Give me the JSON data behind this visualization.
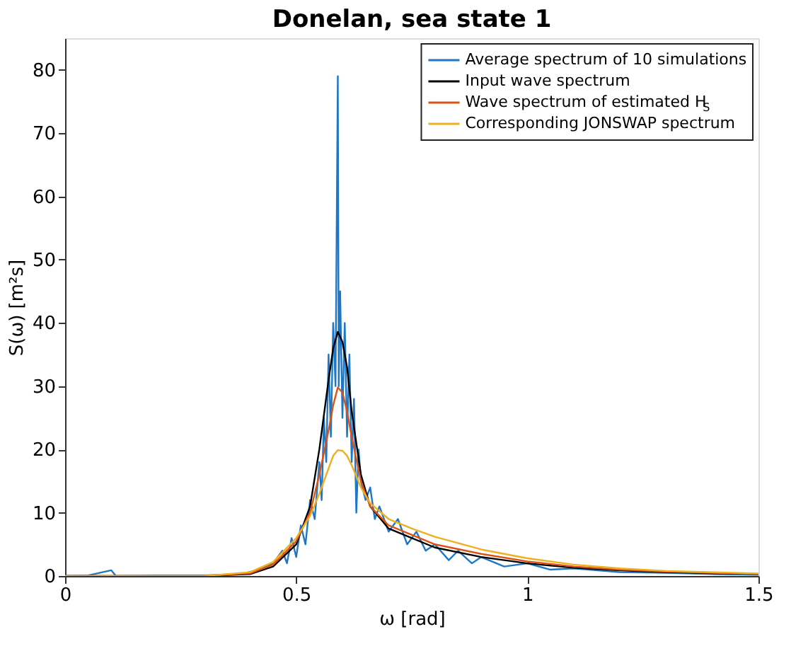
{
  "chart_data": {
    "type": "line",
    "title": "Donelan, sea state 1",
    "xlabel": "ω [rad]",
    "ylabel": "S(ω) [m²s]",
    "xlim": [
      0,
      1.5
    ],
    "xticks": [
      0,
      0.5,
      1,
      1.5
    ],
    "ylim": [
      0,
      85
    ],
    "yticks": [
      0,
      10,
      20,
      30,
      40,
      50,
      60,
      70,
      80
    ],
    "grid": false,
    "legend": "top right",
    "line_style": "solid",
    "marker": "none",
    "series": [
      {
        "name": "Average spectrum of 10 simulations",
        "color": "#1f77c4",
        "x": [
          0,
          0.05,
          0.1,
          0.11,
          0.2,
          0.3,
          0.38,
          0.42,
          0.45,
          0.47,
          0.48,
          0.49,
          0.5,
          0.51,
          0.52,
          0.53,
          0.54,
          0.55,
          0.555,
          0.56,
          0.565,
          0.57,
          0.575,
          0.58,
          0.585,
          0.59,
          0.592,
          0.595,
          0.6,
          0.605,
          0.61,
          0.615,
          0.62,
          0.625,
          0.63,
          0.635,
          0.64,
          0.65,
          0.66,
          0.67,
          0.68,
          0.7,
          0.72,
          0.74,
          0.76,
          0.78,
          0.8,
          0.83,
          0.85,
          0.88,
          0.9,
          0.95,
          1.0,
          1.05,
          1.1,
          1.2,
          1.3,
          1.4,
          1.5
        ],
        "values": [
          0,
          0.1,
          0.9,
          0,
          0.1,
          0.1,
          0.3,
          1,
          2,
          4,
          2,
          6,
          3,
          8,
          5,
          12,
          9,
          18,
          12,
          25,
          18,
          35,
          22,
          40,
          30,
          79,
          30,
          45,
          25,
          40,
          22,
          35,
          18,
          28,
          10,
          20,
          15,
          12,
          14,
          9,
          11,
          7,
          9,
          5,
          7,
          4,
          5,
          2.5,
          4,
          2,
          3,
          1.5,
          2,
          1,
          1.2,
          0.6,
          0.5,
          0.3,
          0.2
        ]
      },
      {
        "name": "Input wave spectrum",
        "color": "#000000",
        "x": [
          0,
          0.3,
          0.4,
          0.45,
          0.5,
          0.53,
          0.55,
          0.57,
          0.58,
          0.59,
          0.6,
          0.61,
          0.62,
          0.64,
          0.66,
          0.7,
          0.75,
          0.8,
          0.9,
          1.0,
          1.1,
          1.2,
          1.3,
          1.5
        ],
        "values": [
          0,
          0,
          0.3,
          1.5,
          5,
          11,
          20,
          31,
          36,
          38.6,
          37,
          33,
          26,
          16,
          11,
          7.5,
          6,
          4.5,
          3,
          2,
          1.3,
          0.9,
          0.6,
          0.3
        ]
      },
      {
        "name": "Wave spectrum of estimated H$_{S}$",
        "color": "#d95319",
        "x": [
          0,
          0.3,
          0.4,
          0.45,
          0.5,
          0.53,
          0.55,
          0.57,
          0.58,
          0.59,
          0.6,
          0.61,
          0.62,
          0.64,
          0.66,
          0.7,
          0.75,
          0.8,
          0.9,
          1.0,
          1.1,
          1.2,
          1.3,
          1.5
        ],
        "values": [
          0,
          0,
          0.4,
          1.8,
          5.5,
          10,
          16,
          23,
          27,
          29.8,
          29,
          26,
          22,
          15,
          11,
          8,
          6.5,
          5,
          3.5,
          2.3,
          1.5,
          1,
          0.7,
          0.3
        ]
      },
      {
        "name": "Corresponding JONSWAP spectrum",
        "color": "#edb120",
        "x": [
          0,
          0.3,
          0.4,
          0.45,
          0.5,
          0.53,
          0.55,
          0.57,
          0.58,
          0.59,
          0.6,
          0.61,
          0.62,
          0.64,
          0.66,
          0.7,
          0.75,
          0.8,
          0.9,
          1.0,
          1.1,
          1.2,
          1.3,
          1.5
        ],
        "values": [
          0,
          0,
          0.6,
          2.2,
          6,
          9.5,
          13,
          17,
          19,
          19.9,
          19.8,
          19,
          17.5,
          14,
          11.5,
          9,
          7.5,
          6.2,
          4.2,
          2.8,
          1.8,
          1.2,
          0.8,
          0.4
        ]
      }
    ]
  }
}
